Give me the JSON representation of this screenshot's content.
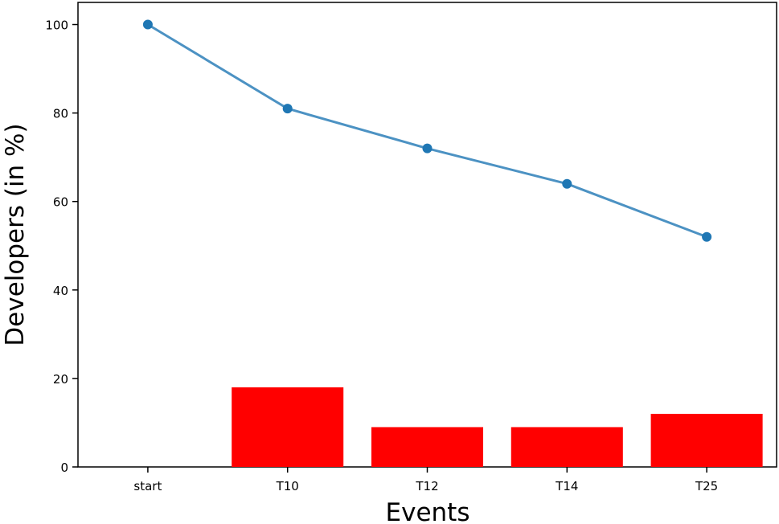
{
  "chart_data": {
    "type": "bar",
    "xlabel": "Events",
    "ylabel": "Developers (in %)",
    "categories": [
      "start",
      "T10",
      "T12",
      "T14",
      "T25"
    ],
    "ylim": [
      0,
      105
    ],
    "yticks": [
      0,
      20,
      40,
      60,
      80,
      100
    ],
    "grid": false,
    "series": [
      {
        "type": "line",
        "values": [
          100,
          81,
          72,
          64,
          52
        ],
        "color": "#1f77b4"
      },
      {
        "type": "bar",
        "values": [
          0,
          18,
          9,
          9,
          12
        ],
        "color": "#ff0000"
      }
    ]
  }
}
